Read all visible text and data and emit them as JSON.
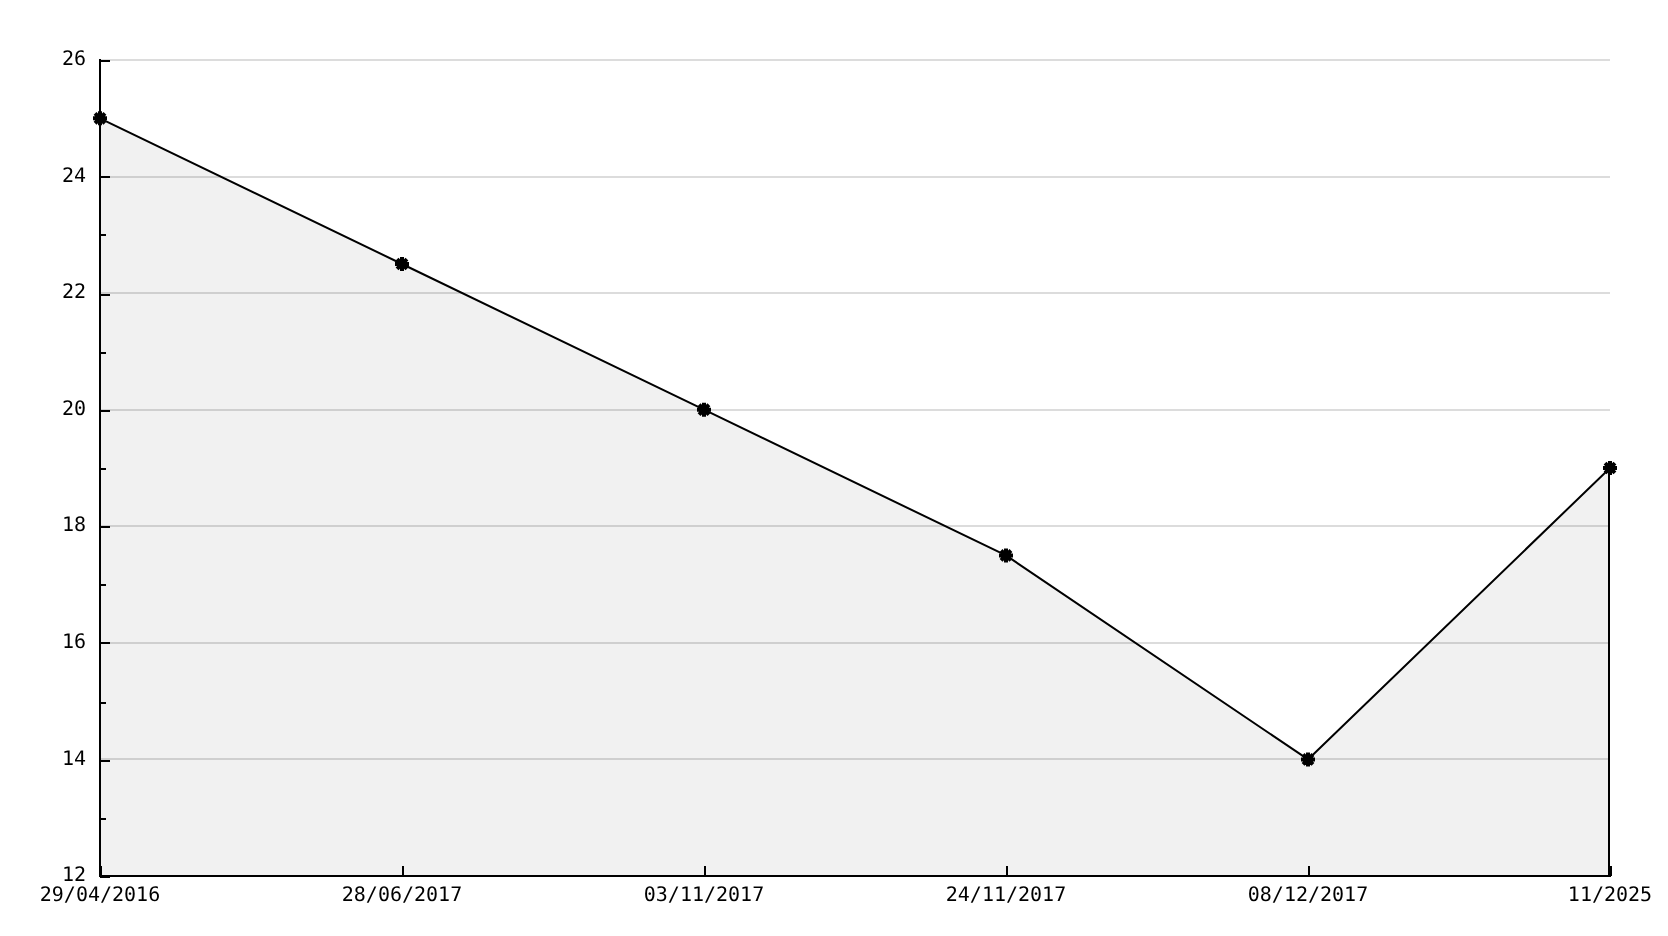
{
  "chart_data": {
    "type": "area",
    "categories": [
      "29/04/2016",
      "28/06/2017",
      "03/11/2017",
      "24/11/2017",
      "08/12/2017",
      "11/2025"
    ],
    "values": [
      25,
      22.5,
      20,
      17.5,
      14,
      19
    ],
    "color": "#000000",
    "ylim": [
      12,
      26
    ],
    "yticks": [
      12,
      {
        "value": 13,
        "label": null
      },
      14,
      {
        "value": 15,
        "label": null
      },
      16,
      {
        "value": 17,
        "label": null
      },
      18,
      {
        "value": 19,
        "label": null
      },
      20,
      {
        "value": 21,
        "label": null
      },
      22,
      {
        "value": 23,
        "label": null
      },
      24,
      {
        "value": 25,
        "label": null
      },
      26
    ],
    "grid": "y",
    "marker": "cross"
  }
}
